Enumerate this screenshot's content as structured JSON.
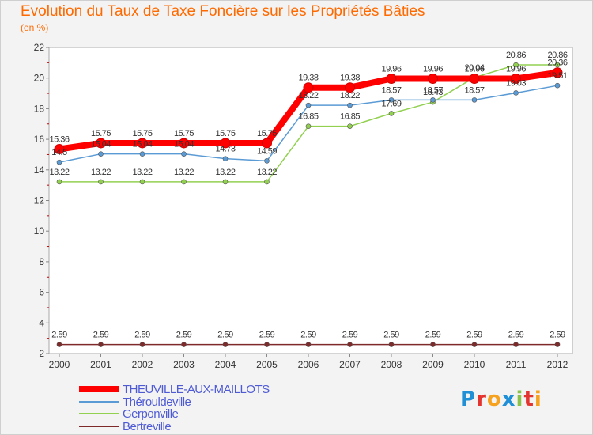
{
  "title": "Evolution du Taux de Taxe Foncière sur les Propriétés Bâties",
  "unit": "(en %)",
  "chart_data": {
    "type": "line",
    "x": [
      "2000",
      "2001",
      "2002",
      "2003",
      "2004",
      "2005",
      "2006",
      "2007",
      "2008",
      "2009",
      "2010",
      "2011",
      "2012"
    ],
    "ylim": [
      2,
      22
    ],
    "yticks": [
      2,
      4,
      6,
      8,
      10,
      12,
      14,
      16,
      18,
      20,
      22
    ],
    "grid": false,
    "legend": "bottom-left",
    "series": [
      {
        "name": "THEUVILLE-AUX-MAILLOTS",
        "color": "#ff0000",
        "values": [
          15.36,
          15.75,
          15.75,
          15.75,
          15.75,
          15.75,
          19.38,
          19.38,
          19.96,
          19.96,
          19.96,
          19.96,
          20.36
        ]
      },
      {
        "name": "Thérouldeville",
        "color": "#5b9bd5",
        "values": [
          14.5,
          15.04,
          15.04,
          15.04,
          14.73,
          14.59,
          18.22,
          18.22,
          18.57,
          18.57,
          18.57,
          19.03,
          19.51
        ]
      },
      {
        "name": "Gerponville",
        "color": "#92d050",
        "values": [
          13.22,
          13.22,
          13.22,
          13.22,
          13.22,
          13.22,
          16.85,
          16.85,
          17.69,
          18.43,
          20.04,
          20.86,
          20.86
        ]
      },
      {
        "name": "Bertreville",
        "color": "#7f2a2a",
        "values": [
          2.59,
          2.59,
          2.59,
          2.59,
          2.59,
          2.59,
          2.59,
          2.59,
          2.59,
          2.59,
          2.59,
          2.59,
          2.59
        ]
      }
    ],
    "labels": [
      [
        "15.36",
        "15.75",
        "15.75",
        "15.75",
        "15.75",
        "15.75",
        "19.38",
        "19.38",
        "19.96",
        "19.96",
        "19.96",
        "19.96",
        "20.36"
      ],
      [
        "14.5",
        "15.04",
        "15.04",
        "15.04",
        "14.73",
        "14.59",
        "18.22",
        "18.22",
        "18.57",
        "18.57",
        "18.57",
        "19.03",
        "19.51"
      ],
      [
        "13.22",
        "13.22",
        "13.22",
        "13.22",
        "13.22",
        "13.22",
        "16.85",
        "16.85",
        "17.69",
        "18.43",
        "20.04",
        "20.86",
        "20.86"
      ],
      [
        "2.59",
        "2.59",
        "2.59",
        "2.59",
        "2.59",
        "2.59",
        "2.59",
        "2.59",
        "2.59",
        "2.59",
        "2.59",
        "2.59",
        "2.59"
      ]
    ]
  },
  "logo": {
    "letters": [
      "P",
      "r",
      "o",
      "x",
      "i",
      "t",
      "i"
    ],
    "colors": [
      "#1f8fd6",
      "#e3342f",
      "#f6a21e",
      "#1f8fd6",
      "#8bc34a",
      "#e3342f",
      "#f6a21e"
    ]
  }
}
